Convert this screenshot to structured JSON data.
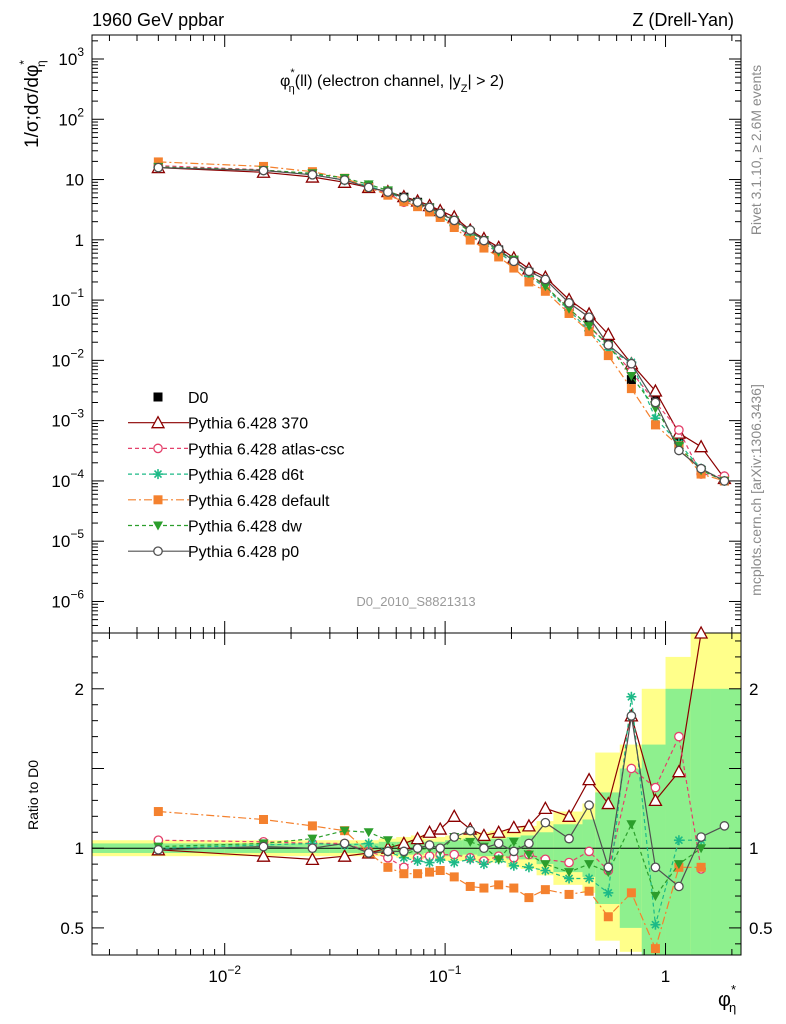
{
  "header": {
    "left": "1960 GeV ppbar",
    "right": "Z (Drell-Yan)"
  },
  "side": {
    "rivet": "Rivet 3.1.10, ≥ 2.6M events",
    "mcplots": "mcplots.cern.ch [arXiv:1306.3436]"
  },
  "watermark": "D0_2010_S8821313",
  "colors": {
    "D0": "#000000",
    "370": "#8b0000",
    "atlas-csc": "#e4416b",
    "d6t": "#1dba87",
    "default": "#f4812e",
    "dw": "#2c9e2c",
    "p0": "#505050",
    "band_outer": "#ffff8a",
    "band_inner": "#8ef08e"
  },
  "chart_data": [
    {
      "type": "scatter",
      "title": "φ*η(ll) (electron channel, |yZ| > 2)",
      "title_parts": {
        "phi": "φ",
        "star": "*",
        "eta": "η",
        "mid": "(ll) (electron channel, |y",
        "z": "Z",
        "end": "| > 2)"
      },
      "ylabel": "1/σ;dσ/dφ*η",
      "ylabel_parts": {
        "main": "1/σ;dσ/dφ",
        "star": "*",
        "eta": "η"
      },
      "xscale": "log",
      "yscale": "log",
      "xlim": [
        0.0025,
        2.2
      ],
      "ylim": [
        3e-07,
        2500
      ],
      "xticks": [
        {
          "v": 0.01,
          "b": "10",
          "e": "−2"
        },
        {
          "v": 0.1,
          "b": "10",
          "e": "−1"
        },
        {
          "v": 1,
          "b": "1",
          "e": ""
        }
      ],
      "yticks": [
        {
          "v": 1000,
          "b": "10",
          "e": "3"
        },
        {
          "v": 100,
          "b": "10",
          "e": "2"
        },
        {
          "v": 10,
          "b": "10",
          "e": ""
        },
        {
          "v": 1,
          "b": "1",
          "e": ""
        },
        {
          "v": 0.1,
          "b": "10",
          "e": "−1"
        },
        {
          "v": 0.01,
          "b": "10",
          "e": "−2"
        },
        {
          "v": 0.001,
          "b": "10",
          "e": "−3"
        },
        {
          "v": 0.0001,
          "b": "10",
          "e": "−4"
        },
        {
          "v": 1e-05,
          "b": "10",
          "e": "−5"
        },
        {
          "v": 1e-06,
          "b": "10",
          "e": "−6"
        }
      ],
      "legend_position": "lower-left",
      "x": [
        0.005,
        0.015,
        0.025,
        0.035,
        0.045,
        0.055,
        0.065,
        0.075,
        0.085,
        0.095,
        0.11,
        0.13,
        0.15,
        0.175,
        0.205,
        0.24,
        0.285,
        0.365,
        0.45,
        0.55,
        0.7,
        0.9,
        1.15,
        1.45,
        1.85
      ],
      "series": [
        {
          "name": "D0",
          "key": "D0",
          "marker": "square",
          "style": "none",
          "values": [
            16.0,
            14.0,
            12.0,
            9.5,
            7.6,
            6.3,
            5.1,
            4.2,
            3.4,
            2.75,
            1.95,
            1.3,
            0.97,
            0.68,
            0.45,
            0.29,
            0.19,
            0.085,
            0.041,
            0.021,
            0.0048,
            0.0023,
            0.00042,
            0.00015,
            0.0001
          ]
        },
        {
          "name": "Pythia 6.428 370",
          "key": "370",
          "marker": "triangle",
          "style": "solid",
          "values": [
            15.8,
            13.2,
            11.0,
            9.0,
            7.4,
            6.3,
            5.2,
            4.4,
            3.7,
            3.05,
            2.4,
            1.45,
            1.05,
            0.75,
            0.5,
            0.33,
            0.24,
            0.102,
            0.059,
            0.027,
            0.0088,
            0.0031,
            0.00062,
            0.00037,
            0.00011
          ]
        },
        {
          "name": "Pythia 6.428 atlas-csc",
          "key": "atlas-csc",
          "marker": "circle-open",
          "style": "dashed",
          "values": [
            17.0,
            14.5,
            12.1,
            9.8,
            7.5,
            5.9,
            4.2,
            3.7,
            3.0,
            2.5,
            1.75,
            1.15,
            0.85,
            0.62,
            0.41,
            0.26,
            0.17,
            0.072,
            0.036,
            0.018,
            0.0065,
            0.002,
            0.0007,
            0.00013,
            0.00012
          ]
        },
        {
          "name": "Pythia 6.428 d6t",
          "key": "d6t",
          "marker": "star",
          "style": "dashed",
          "values": [
            16.0,
            14.2,
            12.3,
            9.7,
            7.8,
            6.1,
            4.8,
            3.9,
            3.1,
            2.5,
            1.75,
            1.2,
            0.88,
            0.62,
            0.4,
            0.25,
            0.16,
            0.068,
            0.031,
            0.015,
            0.0093,
            0.0011,
            0.00042,
            0.00016,
            0.0001
          ]
        },
        {
          "name": "Pythia 6.428 default",
          "key": "default",
          "marker": "square",
          "style": "dashdot",
          "values": [
            19.6,
            16.5,
            13.5,
            10.5,
            7.4,
            5.5,
            4.3,
            3.55,
            2.9,
            2.35,
            1.6,
            0.99,
            0.73,
            0.52,
            0.34,
            0.2,
            0.14,
            0.06,
            0.03,
            0.012,
            0.0034,
            0.00085,
            0.00038,
            0.00013,
            0.0001
          ]
        },
        {
          "name": "Pythia 6.428 dw",
          "key": "dw",
          "marker": "triangle-down",
          "style": "dashed",
          "values": [
            16.2,
            14.3,
            12.7,
            10.6,
            8.3,
            6.6,
            4.9,
            4.1,
            3.4,
            2.7,
            2.1,
            1.35,
            0.98,
            0.63,
            0.47,
            0.28,
            0.17,
            0.072,
            0.037,
            0.018,
            0.0055,
            0.0016,
            0.00038,
            0.00015,
            0.0001
          ]
        },
        {
          "name": "Pythia 6.428 p0",
          "key": "p0",
          "marker": "circle-open",
          "style": "solid",
          "values": [
            15.8,
            14.1,
            12.0,
            9.8,
            7.4,
            6.2,
            5.0,
            4.2,
            3.45,
            2.75,
            2.1,
            1.45,
            0.97,
            0.7,
            0.44,
            0.3,
            0.22,
            0.09,
            0.052,
            0.018,
            0.0088,
            0.002,
            0.00032,
            0.00016,
            0.0001
          ]
        }
      ]
    },
    {
      "type": "scatter",
      "ylabel": "Ratio to D0",
      "xlabel": "φ*η",
      "xlabel_parts": {
        "phi": "φ",
        "star": "*",
        "eta": "η"
      },
      "xscale": "log",
      "xlim": [
        0.0025,
        2.2
      ],
      "ylim": [
        0.33,
        2.35
      ],
      "yticks": [
        {
          "v": 0.5,
          "label": "0.5"
        },
        {
          "v": 1,
          "label": "1"
        },
        {
          "v": 2,
          "label": "2"
        }
      ],
      "reference_line": 1.0,
      "bins": [
        0.0025,
        0.01,
        0.02,
        0.03,
        0.04,
        0.05,
        0.06,
        0.07,
        0.08,
        0.09,
        0.1,
        0.12,
        0.14,
        0.16,
        0.19,
        0.22,
        0.26,
        0.31,
        0.42,
        0.48,
        0.62,
        0.78,
        1.0,
        1.3,
        1.6,
        2.2
      ],
      "band_outer": [
        [
          0.95,
          1.05
        ],
        [
          0.95,
          1.05
        ],
        [
          0.95,
          1.05
        ],
        [
          0.95,
          1.05
        ],
        [
          0.95,
          1.05
        ],
        [
          0.95,
          1.06
        ],
        [
          0.94,
          1.07
        ],
        [
          0.93,
          1.08
        ],
        [
          0.94,
          1.06
        ],
        [
          0.93,
          1.07
        ],
        [
          0.92,
          1.08
        ],
        [
          0.92,
          1.1
        ],
        [
          0.9,
          1.1
        ],
        [
          0.91,
          1.11
        ],
        [
          0.88,
          1.12
        ],
        [
          0.87,
          1.14
        ],
        [
          0.83,
          1.17
        ],
        [
          0.77,
          1.23
        ],
        [
          0.72,
          1.28
        ],
        [
          0.42,
          1.6
        ],
        [
          0.35,
          1.65
        ],
        [
          0.35,
          2.0
        ],
        [
          0.33,
          2.2
        ],
        [
          0.33,
          2.35
        ],
        [
          0.33,
          2.35
        ]
      ],
      "band_inner": [
        [
          0.97,
          1.03
        ],
        [
          0.97,
          1.03
        ],
        [
          0.97,
          1.03
        ],
        [
          0.97,
          1.03
        ],
        [
          0.97,
          1.03
        ],
        [
          0.97,
          1.04
        ],
        [
          0.96,
          1.04
        ],
        [
          0.96,
          1.05
        ],
        [
          0.97,
          1.04
        ],
        [
          0.96,
          1.04
        ],
        [
          0.95,
          1.05
        ],
        [
          0.96,
          1.06
        ],
        [
          0.95,
          1.06
        ],
        [
          0.95,
          1.06
        ],
        [
          0.93,
          1.07
        ],
        [
          0.93,
          1.08
        ],
        [
          0.9,
          1.1
        ],
        [
          0.85,
          1.15
        ],
        [
          0.82,
          1.18
        ],
        [
          0.65,
          1.35
        ],
        [
          0.5,
          1.5
        ],
        [
          0.33,
          1.65
        ],
        [
          0.33,
          2.0
        ],
        [
          0.33,
          2.0
        ],
        [
          0.33,
          2.0
        ]
      ],
      "x": [
        0.005,
        0.015,
        0.025,
        0.035,
        0.045,
        0.055,
        0.065,
        0.075,
        0.085,
        0.095,
        0.11,
        0.13,
        0.15,
        0.175,
        0.205,
        0.24,
        0.285,
        0.365,
        0.45,
        0.55,
        0.7,
        0.9,
        1.15,
        1.45,
        1.85
      ],
      "series": [
        {
          "key": "370",
          "values": [
            0.99,
            0.95,
            0.93,
            0.95,
            0.97,
            1.0,
            1.03,
            1.06,
            1.1,
            1.12,
            1.2,
            1.12,
            1.08,
            1.1,
            1.13,
            1.14,
            1.25,
            1.2,
            1.43,
            1.28,
            1.83,
            1.3,
            1.48,
            2.45,
            null
          ]
        },
        {
          "key": "atlas-csc",
          "values": [
            1.05,
            1.04,
            1.03,
            1.03,
            0.98,
            0.94,
            0.88,
            0.94,
            0.95,
            0.96,
            0.96,
            0.94,
            0.92,
            0.95,
            0.94,
            0.96,
            0.93,
            0.91,
            0.98,
            0.86,
            1.5,
            1.38,
            1.7,
            0.87,
            null
          ]
        },
        {
          "key": "d6t",
          "values": [
            1.0,
            1.02,
            1.03,
            1.02,
            1.03,
            0.98,
            0.94,
            0.92,
            0.91,
            0.93,
            0.91,
            0.93,
            0.9,
            0.93,
            0.89,
            0.88,
            0.86,
            0.81,
            0.81,
            0.72,
            1.95,
            0.52,
            1.05,
            1.05,
            null
          ]
        },
        {
          "key": "default",
          "values": [
            1.23,
            1.18,
            1.14,
            1.11,
            0.97,
            0.88,
            0.84,
            0.84,
            0.85,
            0.86,
            0.82,
            0.76,
            0.75,
            0.77,
            0.75,
            0.69,
            0.74,
            0.71,
            0.73,
            0.57,
            0.72,
            0.37,
            0.88,
            0.88,
            null
          ]
        },
        {
          "key": "dw",
          "values": [
            1.01,
            1.03,
            1.06,
            1.11,
            1.1,
            1.05,
            0.96,
            0.99,
            1.0,
            0.98,
            1.07,
            1.04,
            1.01,
            0.93,
            1.04,
            0.96,
            0.9,
            0.85,
            0.9,
            0.85,
            1.15,
            0.7,
            0.9,
            1.0,
            null
          ]
        },
        {
          "key": "p0",
          "values": [
            0.99,
            1.01,
            1.0,
            1.03,
            0.97,
            0.98,
            0.98,
            1.0,
            1.02,
            1.0,
            1.07,
            1.11,
            1.0,
            1.03,
            0.98,
            1.03,
            1.16,
            1.06,
            1.27,
            0.88,
            1.83,
            0.88,
            0.76,
            1.07,
            1.14
          ]
        }
      ]
    }
  ]
}
